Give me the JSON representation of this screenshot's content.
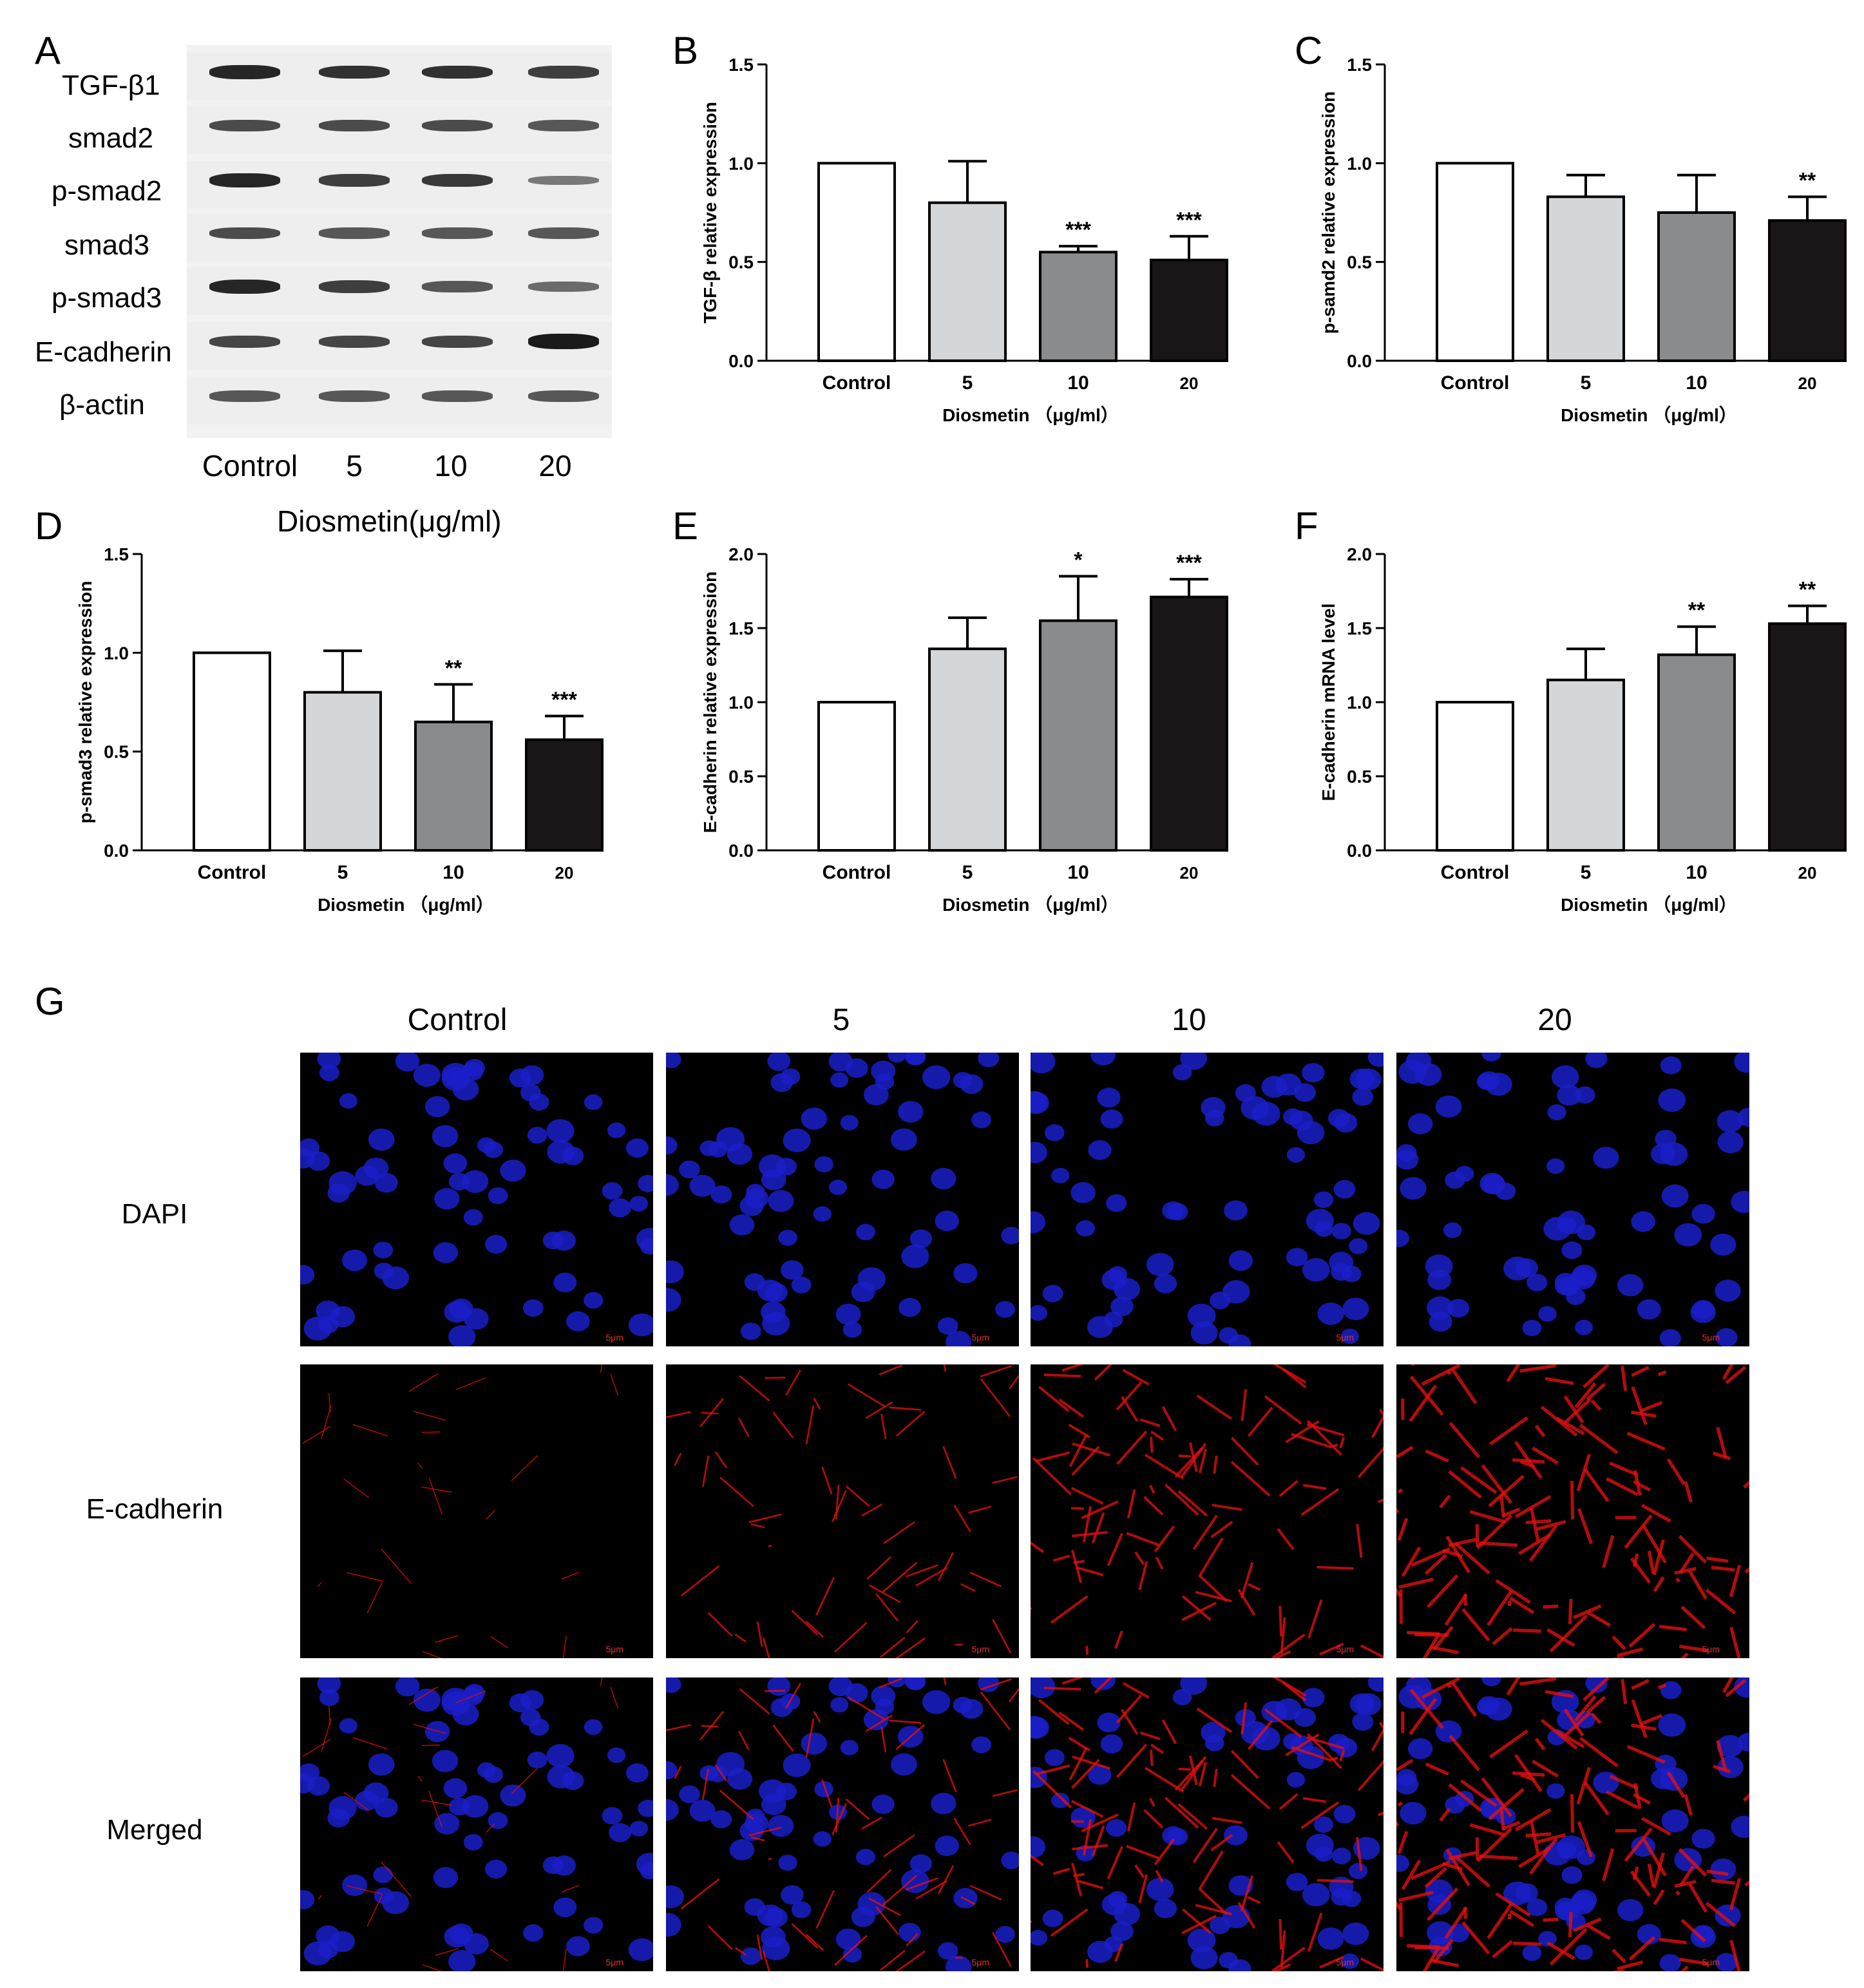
{
  "panels": {
    "A": "A",
    "B": "B",
    "C": "C",
    "D": "D",
    "E": "E",
    "F": "F",
    "G": "G"
  },
  "western_blot": {
    "proteins": [
      "TGF-β1",
      "smad2",
      "p-smad2",
      "smad3",
      "p-smad3",
      "E-cadherin",
      "β-actin"
    ],
    "lanes": [
      "Control",
      "5",
      "10",
      "20"
    ],
    "xlabel": "Diosmetin(μg/ml)"
  },
  "chart_data": [
    {
      "id": "B",
      "type": "bar",
      "categories": [
        "Control",
        "5",
        "10",
        "20"
      ],
      "values": [
        1.0,
        0.8,
        0.55,
        0.51
      ],
      "errors": [
        0,
        0.21,
        0.03,
        0.12
      ],
      "significance": [
        "",
        "",
        "***",
        "***"
      ],
      "colors": [
        "#ffffff",
        "#d4d7da",
        "#8a8b8d",
        "#1a1618"
      ],
      "ylabel": "TGF-β  relative expression",
      "xlabel": "Diosmetin （μg/ml）",
      "ylim": [
        0,
        1.5
      ],
      "yticks": [
        "0.0",
        "0.5",
        "1.0",
        "1.5"
      ]
    },
    {
      "id": "C",
      "type": "bar",
      "categories": [
        "Control",
        "5",
        "10",
        "20"
      ],
      "values": [
        1.0,
        0.83,
        0.75,
        0.71
      ],
      "errors": [
        0,
        0.11,
        0.19,
        0.12
      ],
      "significance": [
        "",
        "",
        "",
        "**"
      ],
      "colors": [
        "#ffffff",
        "#d4d7da",
        "#8a8b8d",
        "#1a1618"
      ],
      "ylabel": "p-samd2 relative expression",
      "xlabel": "Diosmetin （μg/ml）",
      "ylim": [
        0,
        1.5
      ],
      "yticks": [
        "0.0",
        "0.5",
        "1.0",
        "1.5"
      ]
    },
    {
      "id": "D",
      "type": "bar",
      "categories": [
        "Control",
        "5",
        "10",
        "20"
      ],
      "values": [
        1.0,
        0.8,
        0.65,
        0.56
      ],
      "errors": [
        0,
        0.21,
        0.19,
        0.12
      ],
      "significance": [
        "",
        "",
        "**",
        "***"
      ],
      "colors": [
        "#ffffff",
        "#d4d7da",
        "#8a8b8d",
        "#1a1618"
      ],
      "ylabel": "p-smad3 relative expression",
      "xlabel": "Diosmetin （μg/ml）",
      "ylim": [
        0,
        1.5
      ],
      "yticks": [
        "0.0",
        "0.5",
        "1.0",
        "1.5"
      ]
    },
    {
      "id": "E",
      "type": "bar",
      "categories": [
        "Control",
        "5",
        "10",
        "20"
      ],
      "values": [
        1.0,
        1.36,
        1.55,
        1.71
      ],
      "errors": [
        0,
        0.21,
        0.3,
        0.12
      ],
      "significance": [
        "",
        "",
        "*",
        "***"
      ],
      "colors": [
        "#ffffff",
        "#d4d7da",
        "#8a8b8d",
        "#1a1618"
      ],
      "ylabel": "E-cadherin relative expression",
      "xlabel": "Diosmetin （μg/ml）",
      "ylim": [
        0,
        2.0
      ],
      "yticks": [
        "0.0",
        "0.5",
        "1.0",
        "1.5",
        "2.0"
      ]
    },
    {
      "id": "F",
      "type": "bar",
      "categories": [
        "Control",
        "5",
        "10",
        "20"
      ],
      "values": [
        1.0,
        1.15,
        1.32,
        1.53
      ],
      "errors": [
        0,
        0.21,
        0.19,
        0.12
      ],
      "significance": [
        "",
        "",
        "**",
        "**"
      ],
      "colors": [
        "#ffffff",
        "#d4d7da",
        "#8a8b8d",
        "#1a1618"
      ],
      "ylabel": "E-cadherin mRNA level",
      "xlabel": "Diosmetin （μg/ml）",
      "ylim": [
        0,
        2.0
      ],
      "yticks": [
        "0.0",
        "0.5",
        "1.0",
        "1.5",
        "2.0"
      ]
    }
  ],
  "if_panel": {
    "columns": [
      "Control",
      "5",
      "10",
      "20"
    ],
    "rows": [
      "DAPI",
      "E-cadherin",
      "Merged"
    ],
    "scale_bar": "5μm",
    "nucleus_color": "#1a1fc8",
    "membrane_color": "#e01010"
  }
}
